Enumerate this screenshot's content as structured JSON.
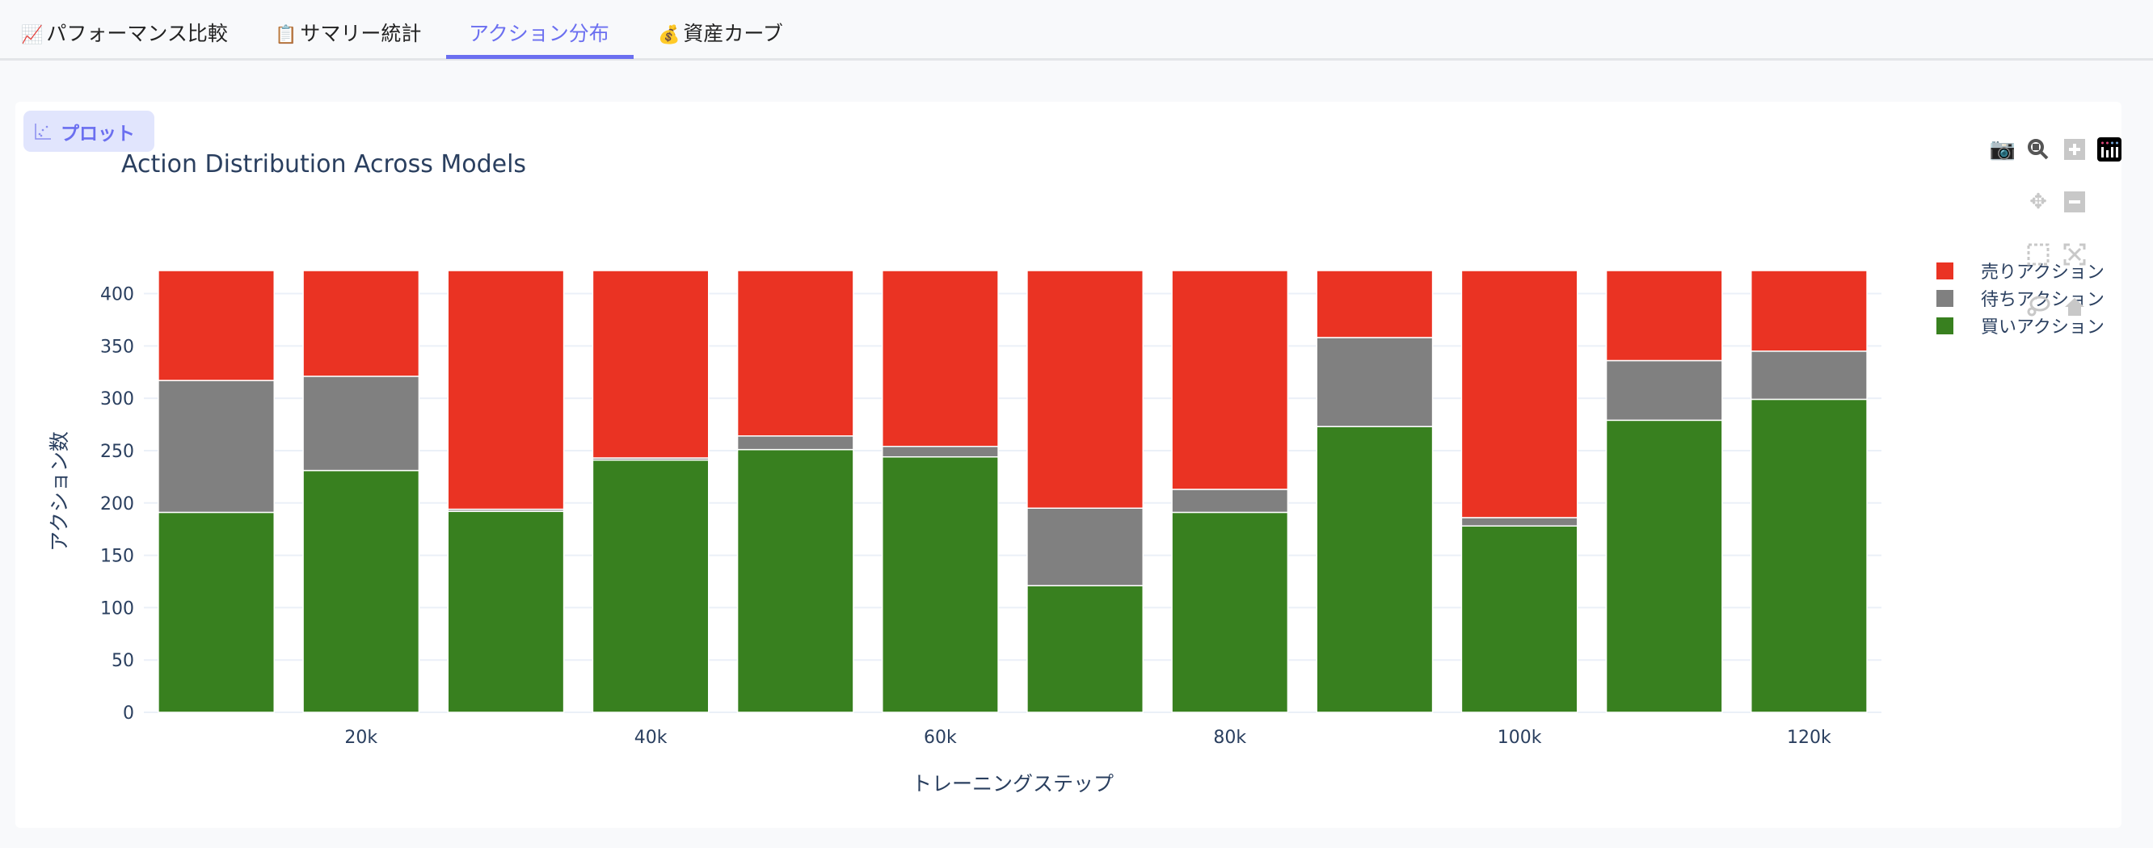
{
  "tabs": [
    {
      "icon": "chart-increasing-icon",
      "glyph": "📈",
      "label": "パフォーマンス比較",
      "active": false
    },
    {
      "icon": "clipboard-icon",
      "glyph": "📋",
      "label": "サマリー統計",
      "active": false
    },
    {
      "icon": "",
      "glyph": "",
      "label": "アクション分布",
      "active": true
    },
    {
      "icon": "money-bag-icon",
      "glyph": "💰",
      "label": "資産カーブ",
      "active": false
    }
  ],
  "plot_badge": {
    "icon": "scatter-chart-icon",
    "label": "プロット"
  },
  "modebar": [
    "camera-icon",
    "zoom-icon",
    "zoom-in-icon",
    "plotly-logo-icon",
    "pan-icon",
    "zoom-out-icon",
    "box-select-icon",
    "autoscale-icon",
    "lasso-icon",
    "reset-axes-home-icon"
  ],
  "chart_data": {
    "type": "bar",
    "barmode": "stack",
    "title": "Action Distribution Across Models",
    "xlabel": "トレーニングステップ",
    "ylabel": "アクション数",
    "x": [
      10000,
      20000,
      30000,
      40000,
      50000,
      60000,
      70000,
      80000,
      90000,
      100000,
      110000,
      120000
    ],
    "xticks": [
      {
        "value": 20000,
        "label": "20k"
      },
      {
        "value": 40000,
        "label": "40k"
      },
      {
        "value": 60000,
        "label": "60k"
      },
      {
        "value": 80000,
        "label": "80k"
      },
      {
        "value": 100000,
        "label": "100k"
      },
      {
        "value": 120000,
        "label": "120k"
      }
    ],
    "xlim": [
      5000,
      125000
    ],
    "ylim": [
      0,
      422
    ],
    "yticks": [
      0,
      50,
      100,
      150,
      200,
      250,
      300,
      350,
      400
    ],
    "grid": true,
    "legend_position": "top-right",
    "series": [
      {
        "name": "買いアクション",
        "color": "#38801f",
        "values": [
          191,
          231,
          192,
          241,
          251,
          244,
          121,
          191,
          273,
          178,
          279,
          299
        ]
      },
      {
        "name": "待ちアクション",
        "color": "#808080",
        "values": [
          126,
          90,
          2,
          2,
          13,
          10,
          74,
          22,
          85,
          8,
          57,
          46
        ]
      },
      {
        "name": "売りアクション",
        "color": "#ea3323",
        "values": [
          105,
          101,
          228,
          179,
          158,
          168,
          227,
          209,
          64,
          236,
          86,
          77
        ]
      }
    ]
  }
}
